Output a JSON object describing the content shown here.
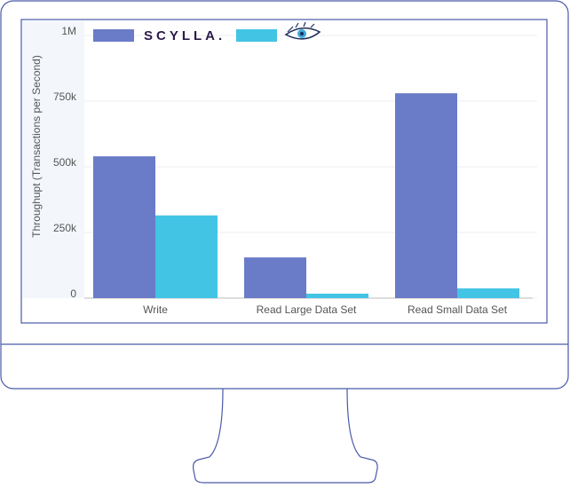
{
  "chart_data": {
    "type": "bar",
    "y_label": "Throughupt (Transactions per Second)",
    "categories": [
      "Write",
      "Read Large Data Set",
      "Read Small Data Set"
    ],
    "series": [
      {
        "name": "SCYLLA.",
        "color": "#6a7bc8",
        "values": [
          540000,
          155000,
          780000
        ]
      },
      {
        "color": "#42c4e4",
        "values": [
          315000,
          17000,
          37000
        ]
      }
    ],
    "ylim": [
      0,
      1000000
    ],
    "yticks": [
      0,
      {
        "value": 250000,
        "label": "250k"
      },
      {
        "value": 500000,
        "label": "500k"
      },
      {
        "value": 750000,
        "label": "750k"
      },
      {
        "value": 1000000,
        "label": "1M"
      }
    ],
    "grid": true
  }
}
